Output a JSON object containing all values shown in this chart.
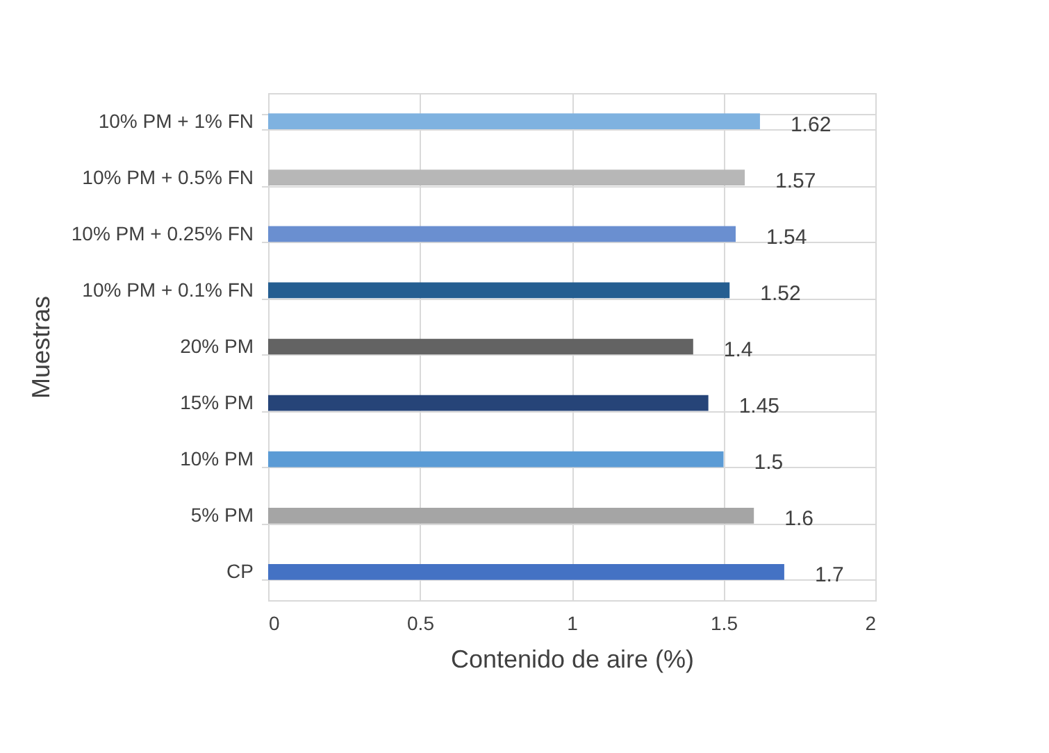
{
  "chart_data": {
    "type": "bar",
    "orientation": "horizontal",
    "xlabel": "Contenido de aire (%)",
    "ylabel": "Muestras",
    "categories": [
      "10% PM + 1% FN",
      "10% PM + 0.5% FN",
      "10% PM + 0.25% FN",
      "10% PM + 0.1% FN",
      "20% PM",
      "15% PM",
      "10% PM",
      "5% PM",
      "CP"
    ],
    "values": [
      1.62,
      1.57,
      1.54,
      1.52,
      1.4,
      1.45,
      1.5,
      1.6,
      1.7
    ],
    "colors": [
      "#7fb2e0",
      "#b7b7b7",
      "#6a8fd0",
      "#255e91",
      "#636363",
      "#264478",
      "#5b9bd5",
      "#a5a5a5",
      "#4472c4"
    ],
    "xlim": [
      0,
      2
    ],
    "xticks": [
      0,
      0.5,
      1,
      1.5,
      2
    ],
    "grid": true,
    "data_labels": true
  }
}
